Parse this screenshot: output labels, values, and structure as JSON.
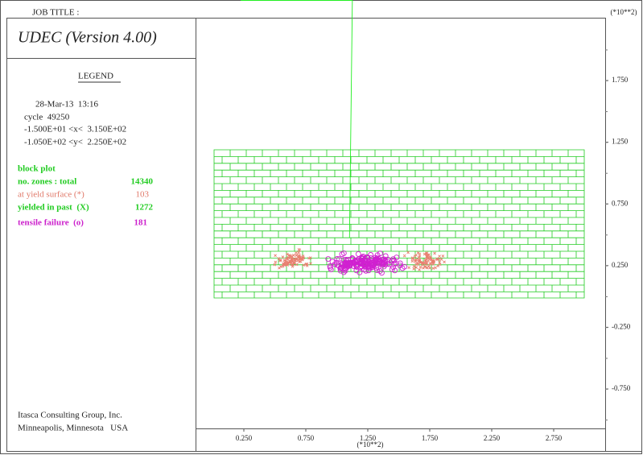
{
  "header": {
    "job_title": "JOB TITLE :",
    "program": "UDEC (Version 4.00)"
  },
  "legend": {
    "title": "LEGEND",
    "date": "28-Mar-13  13:16",
    "cycle": "cycle  49250",
    "x_range": "-1.500E+01 <x<  3.150E+02",
    "y_range": "-1.050E+02 <y<  2.250E+02",
    "items": [
      {
        "label": "block plot"
      },
      {
        "label": "no. zones : total",
        "value": 14340
      },
      {
        "label": "at yield surface (*)",
        "value": 103
      },
      {
        "label": "yielded in past  (X)",
        "value": 1272
      },
      {
        "label": "tensile failure  (o)",
        "value": 181
      }
    ]
  },
  "axes": {
    "x_unit": "(*10**2)",
    "y_unit": "(*10**2)",
    "x_ticks": [
      "0.250",
      "0.750",
      "1.250",
      "1.750",
      "2.250",
      "2.750"
    ],
    "y_ticks": [
      "1.750",
      "1.250",
      "0.750",
      "0.250",
      "-0.250",
      "-0.750"
    ]
  },
  "footer": {
    "company": "Itasca Consulting Group, Inc.",
    "location": "Minneapolis, Minnesota   USA"
  }
}
